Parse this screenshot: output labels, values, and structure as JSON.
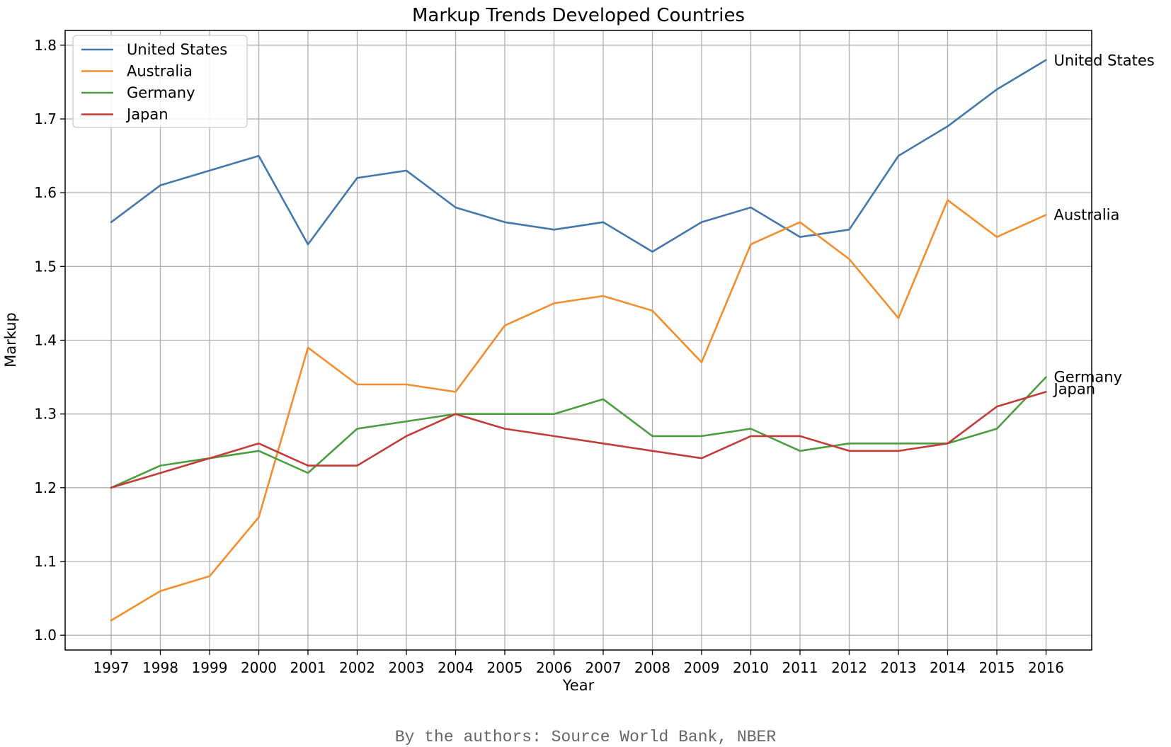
{
  "chart_data": {
    "type": "line",
    "title": "Markup Trends Developed Countries",
    "xlabel": "Year",
    "ylabel": "Markup",
    "ylim": [
      0.98,
      1.82
    ],
    "yticks": [
      "1.0",
      "1.1",
      "1.2",
      "1.3",
      "1.4",
      "1.5",
      "1.6",
      "1.7",
      "1.8"
    ],
    "grid": true,
    "legend_position": "top-left",
    "categories": [
      "1997",
      "1998",
      "1999",
      "2000",
      "2001",
      "2002",
      "2003",
      "2004",
      "2005",
      "2006",
      "2007",
      "2008",
      "2009",
      "2010",
      "2011",
      "2012",
      "2013",
      "2014",
      "2015",
      "2016"
    ],
    "series": [
      {
        "name": "United States",
        "color": "#4477aa",
        "end_label": "United States",
        "values": [
          1.56,
          1.61,
          1.63,
          1.65,
          1.53,
          1.62,
          1.63,
          1.58,
          1.56,
          1.55,
          1.56,
          1.52,
          1.56,
          1.58,
          1.54,
          1.55,
          1.65,
          1.69,
          1.74,
          1.78
        ]
      },
      {
        "name": "Australia",
        "color": "#f28e2b",
        "end_label": "Australia",
        "values": [
          1.02,
          1.06,
          1.08,
          1.16,
          1.39,
          1.34,
          1.34,
          1.33,
          1.42,
          1.45,
          1.46,
          1.44,
          1.37,
          1.53,
          1.56,
          1.51,
          1.43,
          1.59,
          1.54,
          1.57
        ]
      },
      {
        "name": "Germany",
        "color": "#4a9e3f",
        "end_label": "Germany",
        "values": [
          1.2,
          1.23,
          1.24,
          1.25,
          1.22,
          1.28,
          1.29,
          1.3,
          1.3,
          1.3,
          1.32,
          1.27,
          1.27,
          1.28,
          1.25,
          1.26,
          1.26,
          1.26,
          1.28,
          1.35
        ]
      },
      {
        "name": "Japan",
        "color": "#c43c39",
        "end_label": "Japan",
        "values": [
          1.2,
          1.22,
          1.24,
          1.26,
          1.23,
          1.23,
          1.27,
          1.3,
          1.28,
          1.27,
          1.26,
          1.25,
          1.24,
          1.27,
          1.27,
          1.25,
          1.25,
          1.26,
          1.31,
          1.33
        ]
      }
    ]
  },
  "footer": {
    "source_note": "By the authors: Source World Bank, NBER"
  }
}
